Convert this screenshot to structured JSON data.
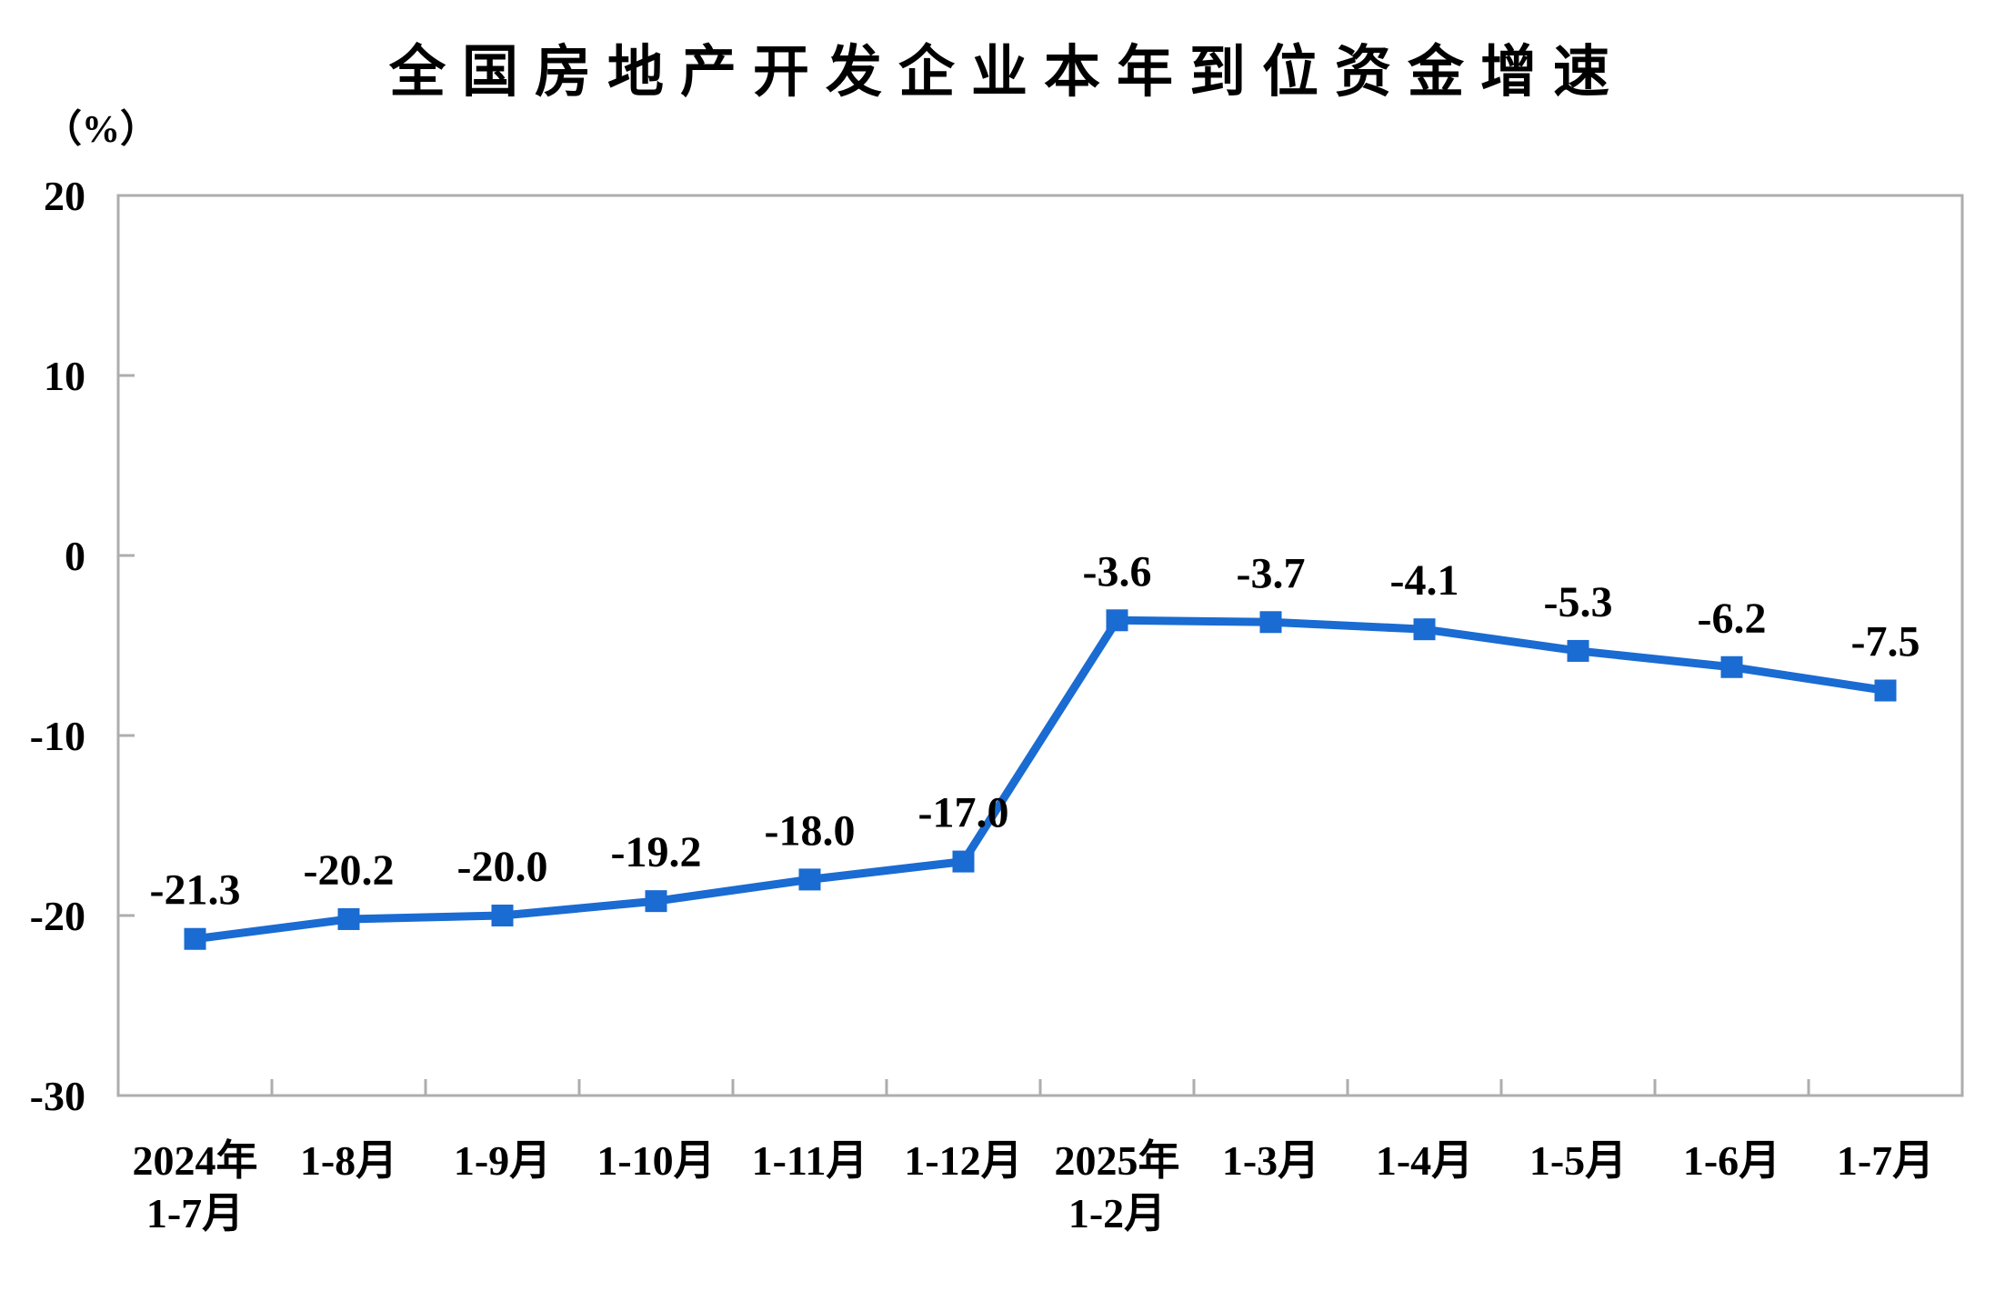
{
  "chart_data": {
    "type": "line",
    "title": "全国房地产开发企业本年到位资金增速",
    "ylabel": "（%）",
    "xlabel": "",
    "categories": [
      "2024年\n1-7月",
      "1-8月",
      "1-9月",
      "1-10月",
      "1-11月",
      "1-12月",
      "2025年\n1-2月",
      "1-3月",
      "1-4月",
      "1-5月",
      "1-6月",
      "1-7月"
    ],
    "values": [
      -21.3,
      -20.2,
      -20.0,
      -19.2,
      -18.0,
      -17.0,
      -3.6,
      -3.7,
      -4.1,
      -5.3,
      -6.2,
      -7.5
    ],
    "value_labels": [
      "-21.3",
      "-20.2",
      "-20.0",
      "-19.2",
      "-18.0",
      "-17.0",
      "-3.6",
      "-3.7",
      "-4.1",
      "-5.3",
      "-6.2",
      "-7.5"
    ],
    "ylim": [
      -30,
      20
    ],
    "yticks": [
      20,
      10,
      0,
      -10,
      -20,
      -30
    ],
    "grid": false,
    "legend": false,
    "plot_border": true,
    "marker": "square",
    "colors": {
      "line": "#1A6BD2",
      "marker": "#1A6BD2",
      "axis": "#ADADAD",
      "text": "#000000",
      "background": "#FFFFFF"
    }
  }
}
